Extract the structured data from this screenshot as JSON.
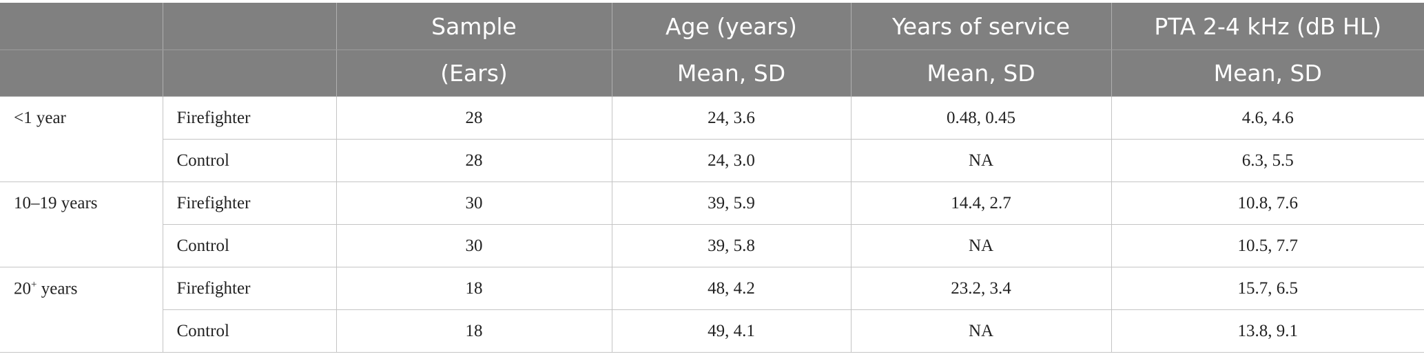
{
  "header": {
    "row1": [
      "",
      "",
      "Sample",
      "Age (years)",
      "Years of service",
      "PTA 2-4 kHz (dB HL)"
    ],
    "row2": [
      "",
      "",
      "(Ears)",
      "Mean, SD",
      "Mean, SD",
      "Mean, SD"
    ]
  },
  "groups": [
    {
      "label": "<1 year",
      "rows": [
        {
          "type": "Firefighter",
          "sample": "28",
          "age": "24, 3.6",
          "service": "0.48, 0.45",
          "pta": "4.6, 4.6"
        },
        {
          "type": "Control",
          "sample": "28",
          "age": "24, 3.0",
          "service": "NA",
          "pta": "6.3, 5.5"
        }
      ]
    },
    {
      "label": "10–19 years",
      "rows": [
        {
          "type": "Firefighter",
          "sample": "30",
          "age": "39, 5.9",
          "service": "14.4, 2.7",
          "pta": "10.8, 7.6"
        },
        {
          "type": "Control",
          "sample": "30",
          "age": "39, 5.8",
          "service": "NA",
          "pta": "10.5, 7.7"
        }
      ]
    },
    {
      "label": "20",
      "label_sup": "+",
      "label_suffix": " years",
      "rows": [
        {
          "type": "Firefighter",
          "sample": "18",
          "age": "48, 4.2",
          "service": "23.2, 3.4",
          "pta": "15.7, 6.5"
        },
        {
          "type": "Control",
          "sample": "18",
          "age": "49, 4.1",
          "service": "NA",
          "pta": "13.8, 9.1"
        }
      ]
    }
  ]
}
